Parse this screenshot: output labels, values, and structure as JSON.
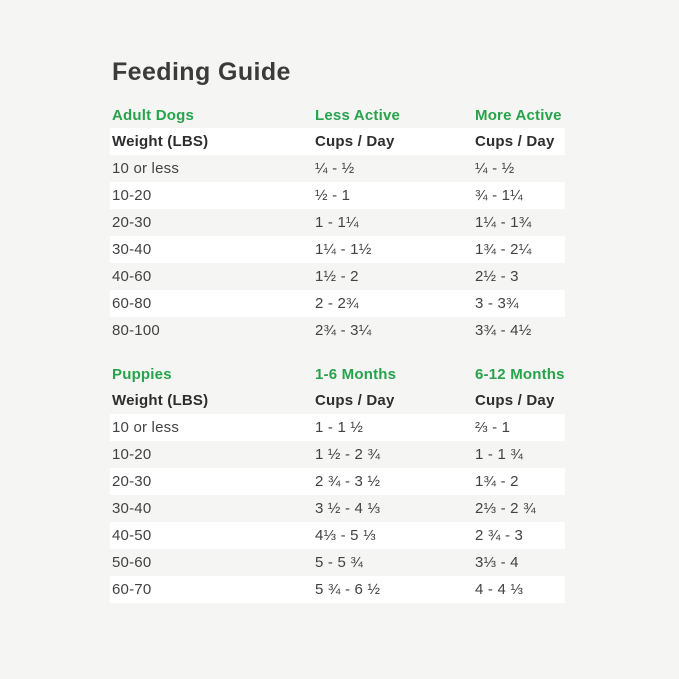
{
  "page": {
    "title": "Feeding Guide",
    "background_color": "#f5f5f4",
    "row_band_color": "#ffffff",
    "accent_green": "#27a34c"
  },
  "tables": [
    {
      "section_label": "Adult Dogs",
      "col2_label": "Less Active",
      "col3_label": "More Active",
      "header": {
        "col1": "Weight (LBS)",
        "col2": "Cups / Day",
        "col3": "Cups / Day"
      },
      "header_row_white": true,
      "rows": [
        [
          "10 or less",
          "¼ - ½",
          "¼ - ½"
        ],
        [
          "10-20",
          "½ - 1",
          "¾ - 1¼"
        ],
        [
          "20-30",
          "1 - 1¼",
          "1¼ - 1¾"
        ],
        [
          "30-40",
          "1¼ - 1½",
          "1¾ - 2¼"
        ],
        [
          "40-60",
          "1½ - 2",
          "2½ - 3"
        ],
        [
          "60-80",
          "2 - 2¾",
          "3 - 3¾"
        ],
        [
          "80-100",
          "2¾ - 3¼",
          "3¾ - 4½"
        ]
      ]
    },
    {
      "section_label": "Puppies",
      "col2_label": "1-6 Months",
      "col3_label": "6-12 Months",
      "header": {
        "col1": "Weight (LBS)",
        "col2": "Cups / Day",
        "col3": "Cups / Day"
      },
      "header_row_white": false,
      "rows": [
        [
          "10 or less",
          "1 - 1 ½",
          "⅔ - 1"
        ],
        [
          "10-20",
          "1 ½ - 2 ¾",
          "1 - 1 ¾"
        ],
        [
          "20-30",
          "2 ¾ - 3 ½",
          "1¾ - 2"
        ],
        [
          "30-40",
          "3 ½ - 4 ⅓",
          "2⅓ - 2 ¾"
        ],
        [
          "40-50",
          "4⅓ - 5 ⅓",
          "2 ¾ - 3"
        ],
        [
          "50-60",
          "5 - 5 ¾",
          "3⅓ - 4"
        ],
        [
          "60-70",
          "5 ¾ - 6 ½",
          "4 - 4 ⅓"
        ]
      ]
    }
  ]
}
